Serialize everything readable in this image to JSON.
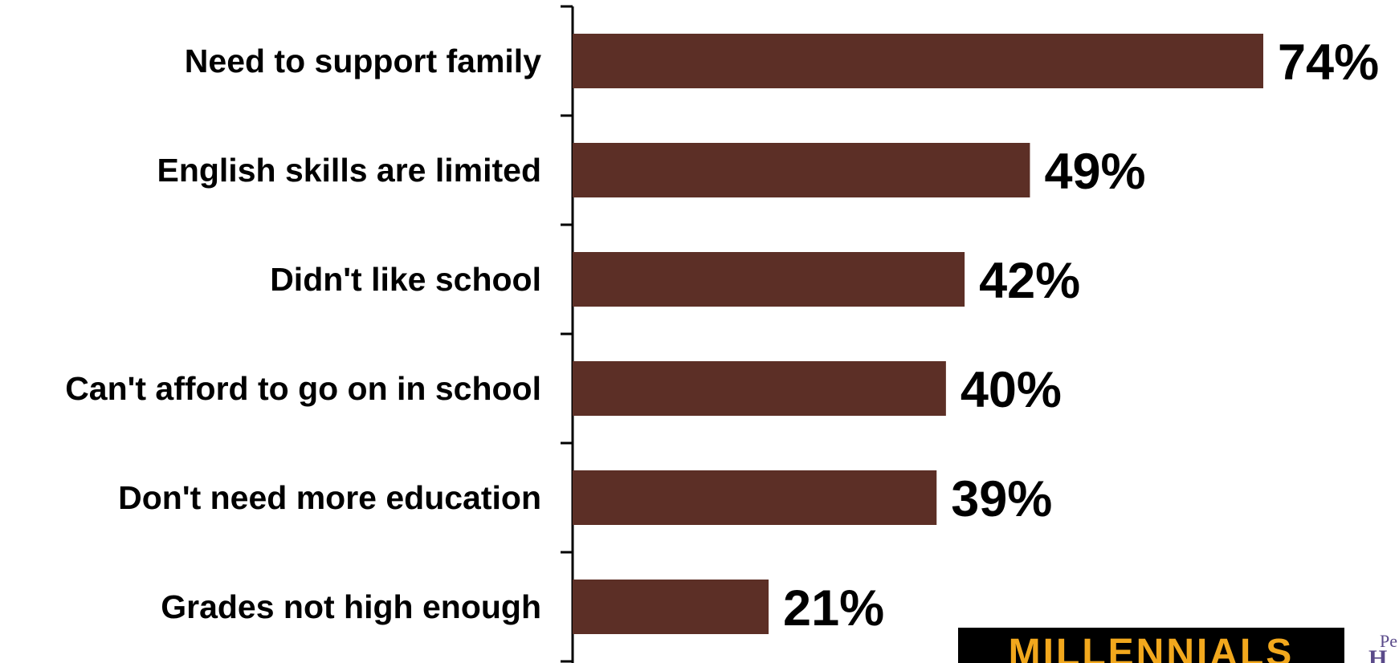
{
  "chart_data": {
    "type": "bar",
    "orientation": "horizontal",
    "categories": [
      "Need to support family",
      "English skills are limited",
      "Didn't like school",
      "Can't afford to go on in school",
      "Don't need more education",
      "Grades not high enough"
    ],
    "values": [
      74,
      49,
      42,
      40,
      39,
      21
    ],
    "value_labels": [
      "74%",
      "49%",
      "42%",
      "40%",
      "39%",
      "21%"
    ],
    "unit": "%",
    "bar_color": "#5c2f26",
    "xlim": [
      0,
      100
    ],
    "grid": false,
    "legend": "none"
  },
  "logos": {
    "millennials": "MILLENNIALS",
    "pew_top": "Pe",
    "pew_bottom": "H"
  }
}
